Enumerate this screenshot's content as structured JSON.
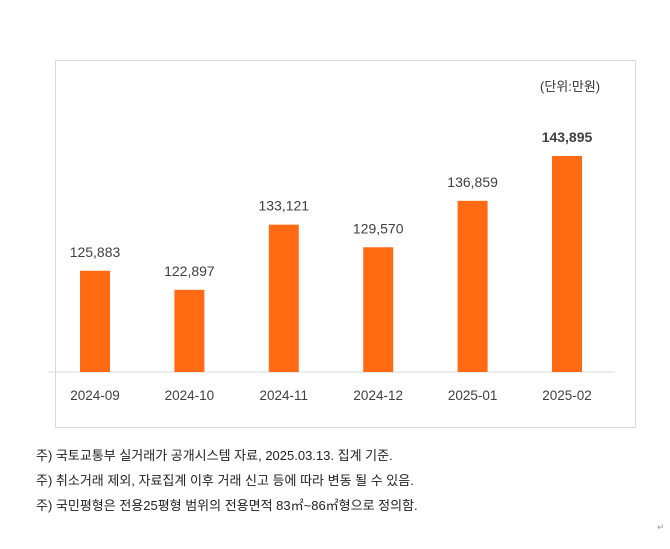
{
  "chart_data": {
    "type": "bar",
    "unit_label": "(단위:만원)",
    "categories": [
      "2024-09",
      "2024-10",
      "2024-11",
      "2024-12",
      "2025-01",
      "2025-02"
    ],
    "values": [
      125883,
      122897,
      133121,
      129570,
      136859,
      143895
    ],
    "data_labels": [
      "125,883",
      "122,897",
      "133,121",
      "129,570",
      "136,859",
      "143,895"
    ],
    "highlight_last_label_bold": true,
    "ylim": [
      110000,
      145000
    ],
    "y_axis_visible": false,
    "grid": false,
    "bar_color": "#ff6a13",
    "baseline_color": "#d9d9d9"
  },
  "notes": [
    "주) 국토교통부 실거래가 공개시스템 자료, 2025.03.13. 집계 기준.",
    "주) 취소거래 제외, 자료집계 이후 거래 신고 등에 따라 변동 될 수 있음.",
    "주) 국민평형은 전용25평형 범위의 전용면적 83㎡~86㎡형으로 정의함."
  ],
  "paragraph_mark": "↵"
}
